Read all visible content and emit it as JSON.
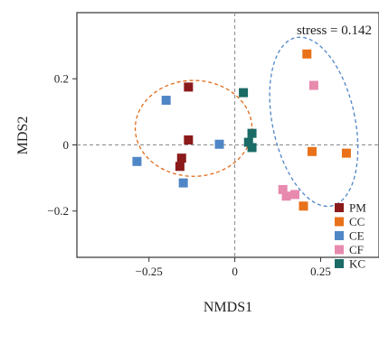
{
  "chart_data": {
    "type": "scatter",
    "xlabel": "NMDS1",
    "ylabel": "MDS2",
    "xlim": [
      -0.46,
      0.42
    ],
    "ylim": [
      -0.34,
      0.4
    ],
    "x_ticks": [
      -0.25,
      0,
      0.25
    ],
    "x_tick_labels": [
      "−0.25",
      "0",
      "0.25"
    ],
    "y_ticks": [
      -0.2,
      0,
      0.2
    ],
    "y_tick_labels": [
      "−0.2",
      "0",
      "0.2"
    ],
    "grid": false,
    "reference_lines": {
      "x": 0,
      "y": 0,
      "style": "dashed"
    },
    "annotation": "stress = 0.142",
    "legend": {
      "position": "bottom-right",
      "marker": "square"
    },
    "series": [
      {
        "name": "PM",
        "color": "#8B1A1A",
        "points": [
          [
            -0.135,
            0.175
          ],
          [
            -0.135,
            0.015
          ],
          [
            -0.155,
            -0.04
          ],
          [
            -0.16,
            -0.065
          ]
        ]
      },
      {
        "name": "CC",
        "color": "#E8711A",
        "points": [
          [
            0.21,
            0.275
          ],
          [
            0.225,
            -0.02
          ],
          [
            0.325,
            -0.025
          ],
          [
            0.2,
            -0.185
          ]
        ]
      },
      {
        "name": "CE",
        "color": "#4F86C6",
        "points": [
          [
            -0.2,
            0.135
          ],
          [
            -0.045,
            0.002
          ],
          [
            -0.285,
            -0.05
          ],
          [
            -0.15,
            -0.115
          ]
        ]
      },
      {
        "name": "CF",
        "color": "#E889AE",
        "points": [
          [
            0.23,
            0.18
          ],
          [
            0.14,
            -0.135
          ],
          [
            0.15,
            -0.155
          ],
          [
            0.175,
            -0.15
          ]
        ]
      },
      {
        "name": "KC",
        "color": "#1B6B66",
        "points": [
          [
            0.025,
            0.158
          ],
          [
            0.05,
            0.035
          ],
          [
            0.04,
            0.008
          ],
          [
            0.05,
            -0.008
          ]
        ]
      }
    ],
    "ellipses": [
      {
        "group": "PM",
        "color": "#E06A1A",
        "center": [
          -0.12,
          0.05
        ],
        "radii": [
          0.17,
          0.145
        ],
        "rotation_deg": 0
      },
      {
        "group": "CC",
        "color": "#4F86C6",
        "center": [
          0.23,
          0.07
        ],
        "radii": [
          0.12,
          0.26
        ],
        "rotation_deg": -12
      }
    ]
  }
}
